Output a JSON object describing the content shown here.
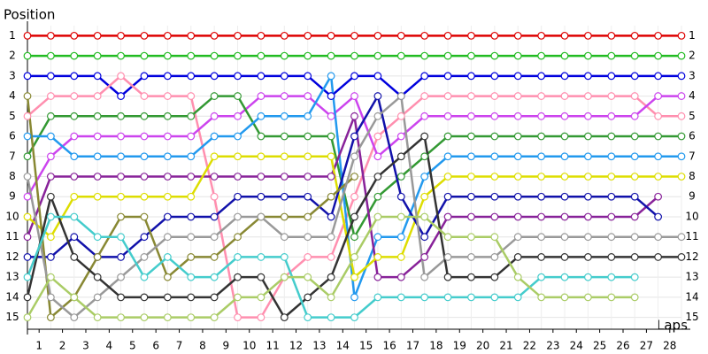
{
  "chart_data": {
    "type": "line",
    "y_label": "Position",
    "x_label": "Laps",
    "x": [
      0,
      1,
      2,
      3,
      4,
      5,
      6,
      7,
      8,
      9,
      10,
      11,
      12,
      13,
      14,
      15,
      16,
      17,
      18,
      19,
      20,
      21,
      22,
      23,
      24,
      25,
      26,
      27,
      28
    ],
    "xlim": [
      0,
      28
    ],
    "ylim": [
      15.5,
      0.5
    ],
    "xticks": [
      {
        "value": 0.5,
        "label": "1"
      },
      {
        "value": 1.5,
        "label": "2"
      },
      {
        "value": 2.5,
        "label": "3"
      },
      {
        "value": 3.5,
        "label": "4"
      },
      {
        "value": 4.5,
        "label": "5"
      },
      {
        "value": 5.5,
        "label": "6"
      },
      {
        "value": 6.5,
        "label": "7"
      },
      {
        "value": 7.5,
        "label": "8"
      },
      {
        "value": 8.5,
        "label": "9"
      },
      {
        "value": 9.5,
        "label": "10"
      },
      {
        "value": 10.5,
        "label": "11"
      },
      {
        "value": 11.5,
        "label": "12"
      },
      {
        "value": 12.5,
        "label": "13"
      },
      {
        "value": 13.5,
        "label": "14"
      },
      {
        "value": 14.5,
        "label": "15"
      },
      {
        "value": 15.5,
        "label": "16"
      },
      {
        "value": 16.5,
        "label": "17"
      },
      {
        "value": 17.5,
        "label": "18"
      },
      {
        "value": 18.5,
        "label": "19"
      },
      {
        "value": 19.5,
        "label": "20"
      },
      {
        "value": 20.5,
        "label": "21"
      },
      {
        "value": 21.5,
        "label": "22"
      },
      {
        "value": 22.5,
        "label": "23"
      },
      {
        "value": 23.5,
        "label": "24"
      },
      {
        "value": 24.5,
        "label": "25"
      },
      {
        "value": 25.5,
        "label": "26"
      },
      {
        "value": 26.5,
        "label": "27"
      },
      {
        "value": 27.5,
        "label": "28"
      }
    ],
    "yticks": [
      1,
      2,
      3,
      4,
      5,
      6,
      7,
      8,
      9,
      10,
      11,
      12,
      13,
      14,
      15
    ],
    "grid": true,
    "series": [
      {
        "color": "#dd0000",
        "values": [
          1,
          1,
          1,
          1,
          1,
          1,
          1,
          1,
          1,
          1,
          1,
          1,
          1,
          1,
          1,
          1,
          1,
          1,
          1,
          1,
          1,
          1,
          1,
          1,
          1,
          1,
          1,
          1,
          1
        ]
      },
      {
        "color": "#22bb22",
        "values": [
          2,
          2,
          2,
          2,
          2,
          2,
          2,
          2,
          2,
          2,
          2,
          2,
          2,
          2,
          2,
          2,
          2,
          2,
          2,
          2,
          2,
          2,
          2,
          2,
          2,
          2,
          2,
          2,
          2
        ]
      },
      {
        "color": "#0000dd",
        "values": [
          3,
          3,
          3,
          3,
          4,
          3,
          3,
          3,
          3,
          3,
          3,
          3,
          3,
          4,
          3,
          3,
          4,
          3,
          3,
          3,
          3,
          3,
          3,
          3,
          3,
          3,
          3,
          3,
          3
        ]
      },
      {
        "color": "#ff8faf",
        "values": [
          5,
          4,
          4,
          4,
          3,
          4,
          4,
          4,
          9,
          15,
          15,
          13,
          12,
          12,
          9,
          6,
          5,
          4,
          4,
          4,
          4,
          4,
          4,
          4,
          4,
          4,
          4,
          5,
          5
        ]
      },
      {
        "color": "#cc44ee",
        "values": [
          9,
          7,
          6,
          6,
          6,
          6,
          6,
          6,
          5,
          5,
          4,
          4,
          4,
          5,
          4,
          7,
          6,
          5,
          5,
          5,
          5,
          5,
          5,
          5,
          5,
          5,
          5,
          4,
          4
        ]
      },
      {
        "color": "#339933",
        "values": [
          7,
          5,
          5,
          5,
          5,
          5,
          5,
          5,
          4,
          4,
          6,
          6,
          6,
          6,
          11,
          9,
          8,
          7,
          6,
          6,
          6,
          6,
          6,
          6,
          6,
          6,
          6,
          6,
          6
        ]
      },
      {
        "color": "#2299ee",
        "values": [
          6,
          6,
          7,
          7,
          7,
          7,
          7,
          7,
          6,
          6,
          5,
          5,
          5,
          3,
          14,
          11,
          11,
          8,
          7,
          7,
          7,
          7,
          7,
          7,
          7,
          7,
          7,
          7,
          7
        ]
      },
      {
        "color": "#882299",
        "values": [
          11,
          8,
          8,
          8,
          8,
          8,
          8,
          8,
          8,
          8,
          8,
          8,
          8,
          8,
          5,
          13,
          13,
          12,
          10,
          10,
          10,
          10,
          10,
          10,
          10,
          10,
          10,
          9,
          null
        ]
      },
      {
        "color": "#dddd00",
        "values": [
          10,
          11,
          9,
          9,
          9,
          9,
          9,
          9,
          7,
          7,
          7,
          7,
          7,
          7,
          13,
          12,
          12,
          9,
          8,
          8,
          8,
          8,
          8,
          8,
          8,
          8,
          8,
          8,
          8
        ]
      },
      {
        "color": "#1111aa",
        "values": [
          12,
          12,
          11,
          12,
          12,
          11,
          10,
          10,
          10,
          9,
          9,
          9,
          9,
          10,
          6,
          4,
          9,
          11,
          9,
          9,
          9,
          9,
          9,
          9,
          9,
          9,
          9,
          10,
          null
        ]
      },
      {
        "color": "#888833",
        "values": [
          4,
          15,
          14,
          12,
          10,
          10,
          13,
          12,
          12,
          11,
          10,
          10,
          10,
          9,
          8,
          null,
          null,
          null,
          null,
          null,
          null,
          null,
          null,
          null,
          null,
          null,
          null,
          null,
          null
        ]
      },
      {
        "color": "#999999",
        "values": [
          8,
          14,
          15,
          14,
          13,
          12,
          11,
          11,
          11,
          10,
          10,
          11,
          11,
          11,
          7,
          5,
          4,
          13,
          12,
          12,
          12,
          11,
          11,
          11,
          11,
          11,
          11,
          11,
          11
        ]
      },
      {
        "color": "#333333",
        "values": [
          14,
          9,
          12,
          13,
          14,
          14,
          14,
          14,
          14,
          13,
          13,
          15,
          14,
          13,
          10,
          8,
          7,
          6,
          13,
          13,
          13,
          12,
          12,
          12,
          12,
          12,
          12,
          12,
          12
        ]
      },
      {
        "color": "#44cccc",
        "values": [
          13,
          10,
          10,
          11,
          11,
          13,
          12,
          13,
          13,
          12,
          12,
          12,
          15,
          15,
          15,
          14,
          14,
          14,
          14,
          14,
          14,
          14,
          13,
          13,
          13,
          13,
          13,
          null,
          null
        ]
      },
      {
        "color": "#aacc66",
        "values": [
          15,
          13,
          14,
          15,
          15,
          15,
          15,
          15,
          15,
          14,
          14,
          13,
          13,
          14,
          12,
          10,
          10,
          10,
          11,
          11,
          11,
          13,
          14,
          14,
          14,
          14,
          14,
          null,
          null
        ]
      }
    ]
  }
}
